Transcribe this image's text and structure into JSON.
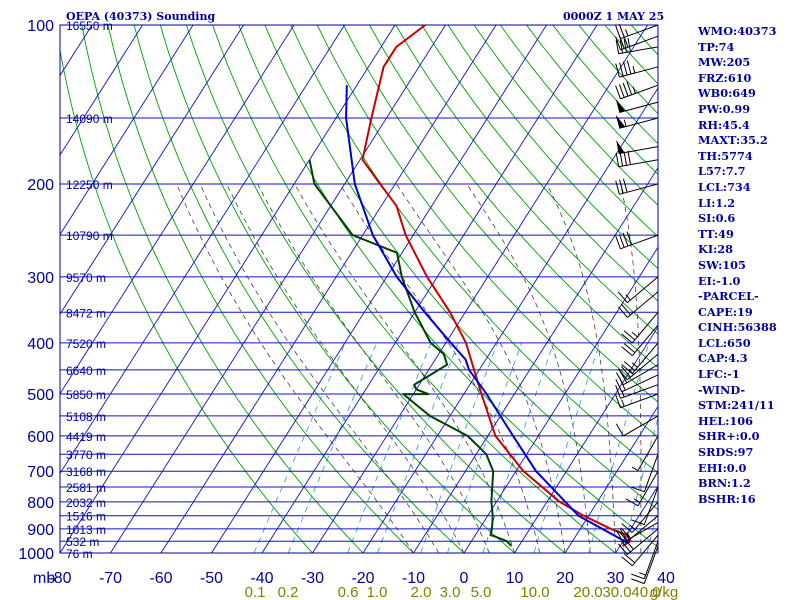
{
  "header": {
    "title": "OEPA (40373) Sounding",
    "valid_time": "0000Z  1 MAY 25"
  },
  "indices": [
    "WMO:40373",
    "TP:74",
    "MW:205",
    "FRZ:610",
    "WB0:649",
    "PW:0.99",
    "RH:45.4",
    "MAXT:35.2",
    "TH:5774",
    "L57:7.7",
    "LCL:734",
    "LI:1.2",
    "SI:0.6",
    "TT:49",
    "KI:28",
    "SW:105",
    "EI:-1.0",
    "-PARCEL-",
    "CAPE:19",
    "CINH:56388",
    "LCL:650",
    "CAP:4.3",
    "LFC:-1",
    "-WIND-",
    "STM:241/11",
    "HEL:106",
    "SHR+:0.0",
    "SRDS:97",
    "EHI:0.0",
    "BRN:1.2",
    "BSHR:16"
  ],
  "colors": {
    "frame": "#0000a0",
    "isobar": "#1010c0",
    "isotherm": "#1010c0",
    "dry_adiabat": "#00a000",
    "moist_adiabat": "#404040",
    "mixing_ratio": "#3090e0",
    "temperature": "#cc0000",
    "dewpoint": "#004000",
    "parcel": "#0000cc",
    "mixing_ratio_label": "#808000",
    "barb": "#000000"
  },
  "chart_data": {
    "type": "line",
    "title": "OEPA (40373) Sounding",
    "xlabel": "",
    "ylabel": "mb",
    "y_scale": "log",
    "y_range_mb": [
      1000,
      100
    ],
    "x_range_c": [
      -80,
      40
    ],
    "x_ticks": [
      -80,
      -70,
      -60,
      -50,
      -40,
      -30,
      -20,
      -10,
      0,
      10,
      20,
      30,
      40
    ],
    "pressure_levels": [
      100,
      200,
      300,
      400,
      500,
      600,
      700,
      800,
      900,
      1000
    ],
    "minor_pressure_levels": [
      150,
      250,
      350,
      450,
      550,
      650,
      750,
      850,
      950
    ],
    "height_labels": [
      {
        "p": 100,
        "h": "16550 m"
      },
      {
        "p": 150,
        "h": "14090 m"
      },
      {
        "p": 200,
        "h": "12250 m"
      },
      {
        "p": 250,
        "h": "10790 m"
      },
      {
        "p": 300,
        "h": "9570 m"
      },
      {
        "p": 350,
        "h": "8472 m"
      },
      {
        "p": 400,
        "h": "7520 m"
      },
      {
        "p": 450,
        "h": "6640 m"
      },
      {
        "p": 500,
        "h": "5850 m"
      },
      {
        "p": 550,
        "h": "5108 m"
      },
      {
        "p": 600,
        "h": "4419 m"
      },
      {
        "p": 650,
        "h": "3770 m"
      },
      {
        "p": 700,
        "h": "3168 m"
      },
      {
        "p": 750,
        "h": "2581 m"
      },
      {
        "p": 800,
        "h": "2032 m"
      },
      {
        "p": 850,
        "h": "1516 m"
      },
      {
        "p": 900,
        "h": "1013 m"
      },
      {
        "p": 950,
        "h": "532 m"
      },
      {
        "p": 1000,
        "h": "76 m"
      }
    ],
    "mixing_ratio_labels": [
      "0.1",
      "0.2",
      "0.6",
      "1.0",
      "2.0",
      "3.0",
      "5.0",
      "10.0",
      "20.0",
      "30.0",
      "40.0",
      "g/kg"
    ],
    "series": [
      {
        "name": "Temperature",
        "points": [
          [
            970,
            30.5
          ],
          [
            950,
            31.5
          ],
          [
            925,
            30
          ],
          [
            900,
            26
          ],
          [
            850,
            19
          ],
          [
            800,
            12.5
          ],
          [
            700,
            1.5
          ],
          [
            600,
            -8.5
          ],
          [
            500,
            -16.5
          ],
          [
            450,
            -21
          ],
          [
            400,
            -26
          ],
          [
            350,
            -33
          ],
          [
            300,
            -42
          ],
          [
            250,
            -51.5
          ],
          [
            220,
            -57
          ],
          [
            200,
            -63
          ],
          [
            180,
            -69.5
          ],
          [
            150,
            -73
          ],
          [
            120,
            -77
          ],
          [
            110,
            -77
          ],
          [
            100,
            -74
          ]
        ]
      },
      {
        "name": "Dewpoint",
        "points": [
          [
            970,
            8.5
          ],
          [
            950,
            7
          ],
          [
            930,
            4
          ],
          [
            925,
            3
          ],
          [
            900,
            2.5
          ],
          [
            850,
            1
          ],
          [
            800,
            -1
          ],
          [
            700,
            -4.5
          ],
          [
            650,
            -8
          ],
          [
            600,
            -14
          ],
          [
            550,
            -24
          ],
          [
            500,
            -32
          ],
          [
            500,
            -27
          ],
          [
            490,
            -30
          ],
          [
            480,
            -31
          ],
          [
            440,
            -27
          ],
          [
            420,
            -29
          ],
          [
            400,
            -33
          ],
          [
            350,
            -40
          ],
          [
            300,
            -47
          ],
          [
            270,
            -51
          ],
          [
            250,
            -62
          ],
          [
            220,
            -70
          ],
          [
            200,
            -76
          ],
          [
            180,
            -80
          ]
        ]
      },
      {
        "name": "Parcel",
        "points": [
          [
            960,
            31.5
          ],
          [
            850,
            18
          ],
          [
            700,
            4
          ],
          [
            600,
            -5
          ],
          [
            500,
            -15.5
          ],
          [
            450,
            -22
          ],
          [
            430,
            -24
          ],
          [
            400,
            -29
          ],
          [
            350,
            -38
          ],
          [
            300,
            -48
          ],
          [
            250,
            -58
          ],
          [
            200,
            -68
          ],
          [
            150,
            -78
          ],
          [
            130,
            -82
          ]
        ]
      }
    ],
    "wind_barbs": [
      {
        "p": 970,
        "dir": 200,
        "spd": 10
      },
      {
        "p": 950,
        "dir": 200,
        "spd": 15
      },
      {
        "p": 925,
        "dir": 220,
        "spd": 20
      },
      {
        "p": 900,
        "dir": 230,
        "spd": 25
      },
      {
        "p": 875,
        "dir": 240,
        "spd": 25
      },
      {
        "p": 850,
        "dir": 230,
        "spd": 20
      },
      {
        "p": 800,
        "dir": 220,
        "spd": 15
      },
      {
        "p": 750,
        "dir": 200,
        "spd": 10
      },
      {
        "p": 700,
        "dir": 210,
        "spd": 15
      },
      {
        "p": 650,
        "dir": 200,
        "spd": 10
      },
      {
        "p": 600,
        "dir": 210,
        "spd": 5
      },
      {
        "p": 550,
        "dir": 240,
        "spd": 10
      },
      {
        "p": 500,
        "dir": 250,
        "spd": 15
      },
      {
        "p": 480,
        "dir": 250,
        "spd": 15
      },
      {
        "p": 460,
        "dir": 245,
        "spd": 20
      },
      {
        "p": 440,
        "dir": 240,
        "spd": 20
      },
      {
        "p": 420,
        "dir": 230,
        "spd": 25
      },
      {
        "p": 400,
        "dir": 220,
        "spd": 25
      },
      {
        "p": 370,
        "dir": 220,
        "spd": 20
      },
      {
        "p": 350,
        "dir": 220,
        "spd": 25
      },
      {
        "p": 320,
        "dir": 230,
        "spd": 20
      },
      {
        "p": 300,
        "dir": 230,
        "spd": 15
      },
      {
        "p": 250,
        "dir": 250,
        "spd": 40
      },
      {
        "p": 200,
        "dir": 255,
        "spd": 30
      },
      {
        "p": 180,
        "dir": 260,
        "spd": 40
      },
      {
        "p": 170,
        "dir": 260,
        "spd": 50
      },
      {
        "p": 150,
        "dir": 255,
        "spd": 55
      },
      {
        "p": 140,
        "dir": 255,
        "spd": 50
      },
      {
        "p": 130,
        "dir": 250,
        "spd": 45
      },
      {
        "p": 120,
        "dir": 255,
        "spd": 45
      },
      {
        "p": 110,
        "dir": 260,
        "spd": 40
      },
      {
        "p": 105,
        "dir": 250,
        "spd": 30
      },
      {
        "p": 100,
        "dir": 250,
        "spd": 25
      }
    ]
  }
}
